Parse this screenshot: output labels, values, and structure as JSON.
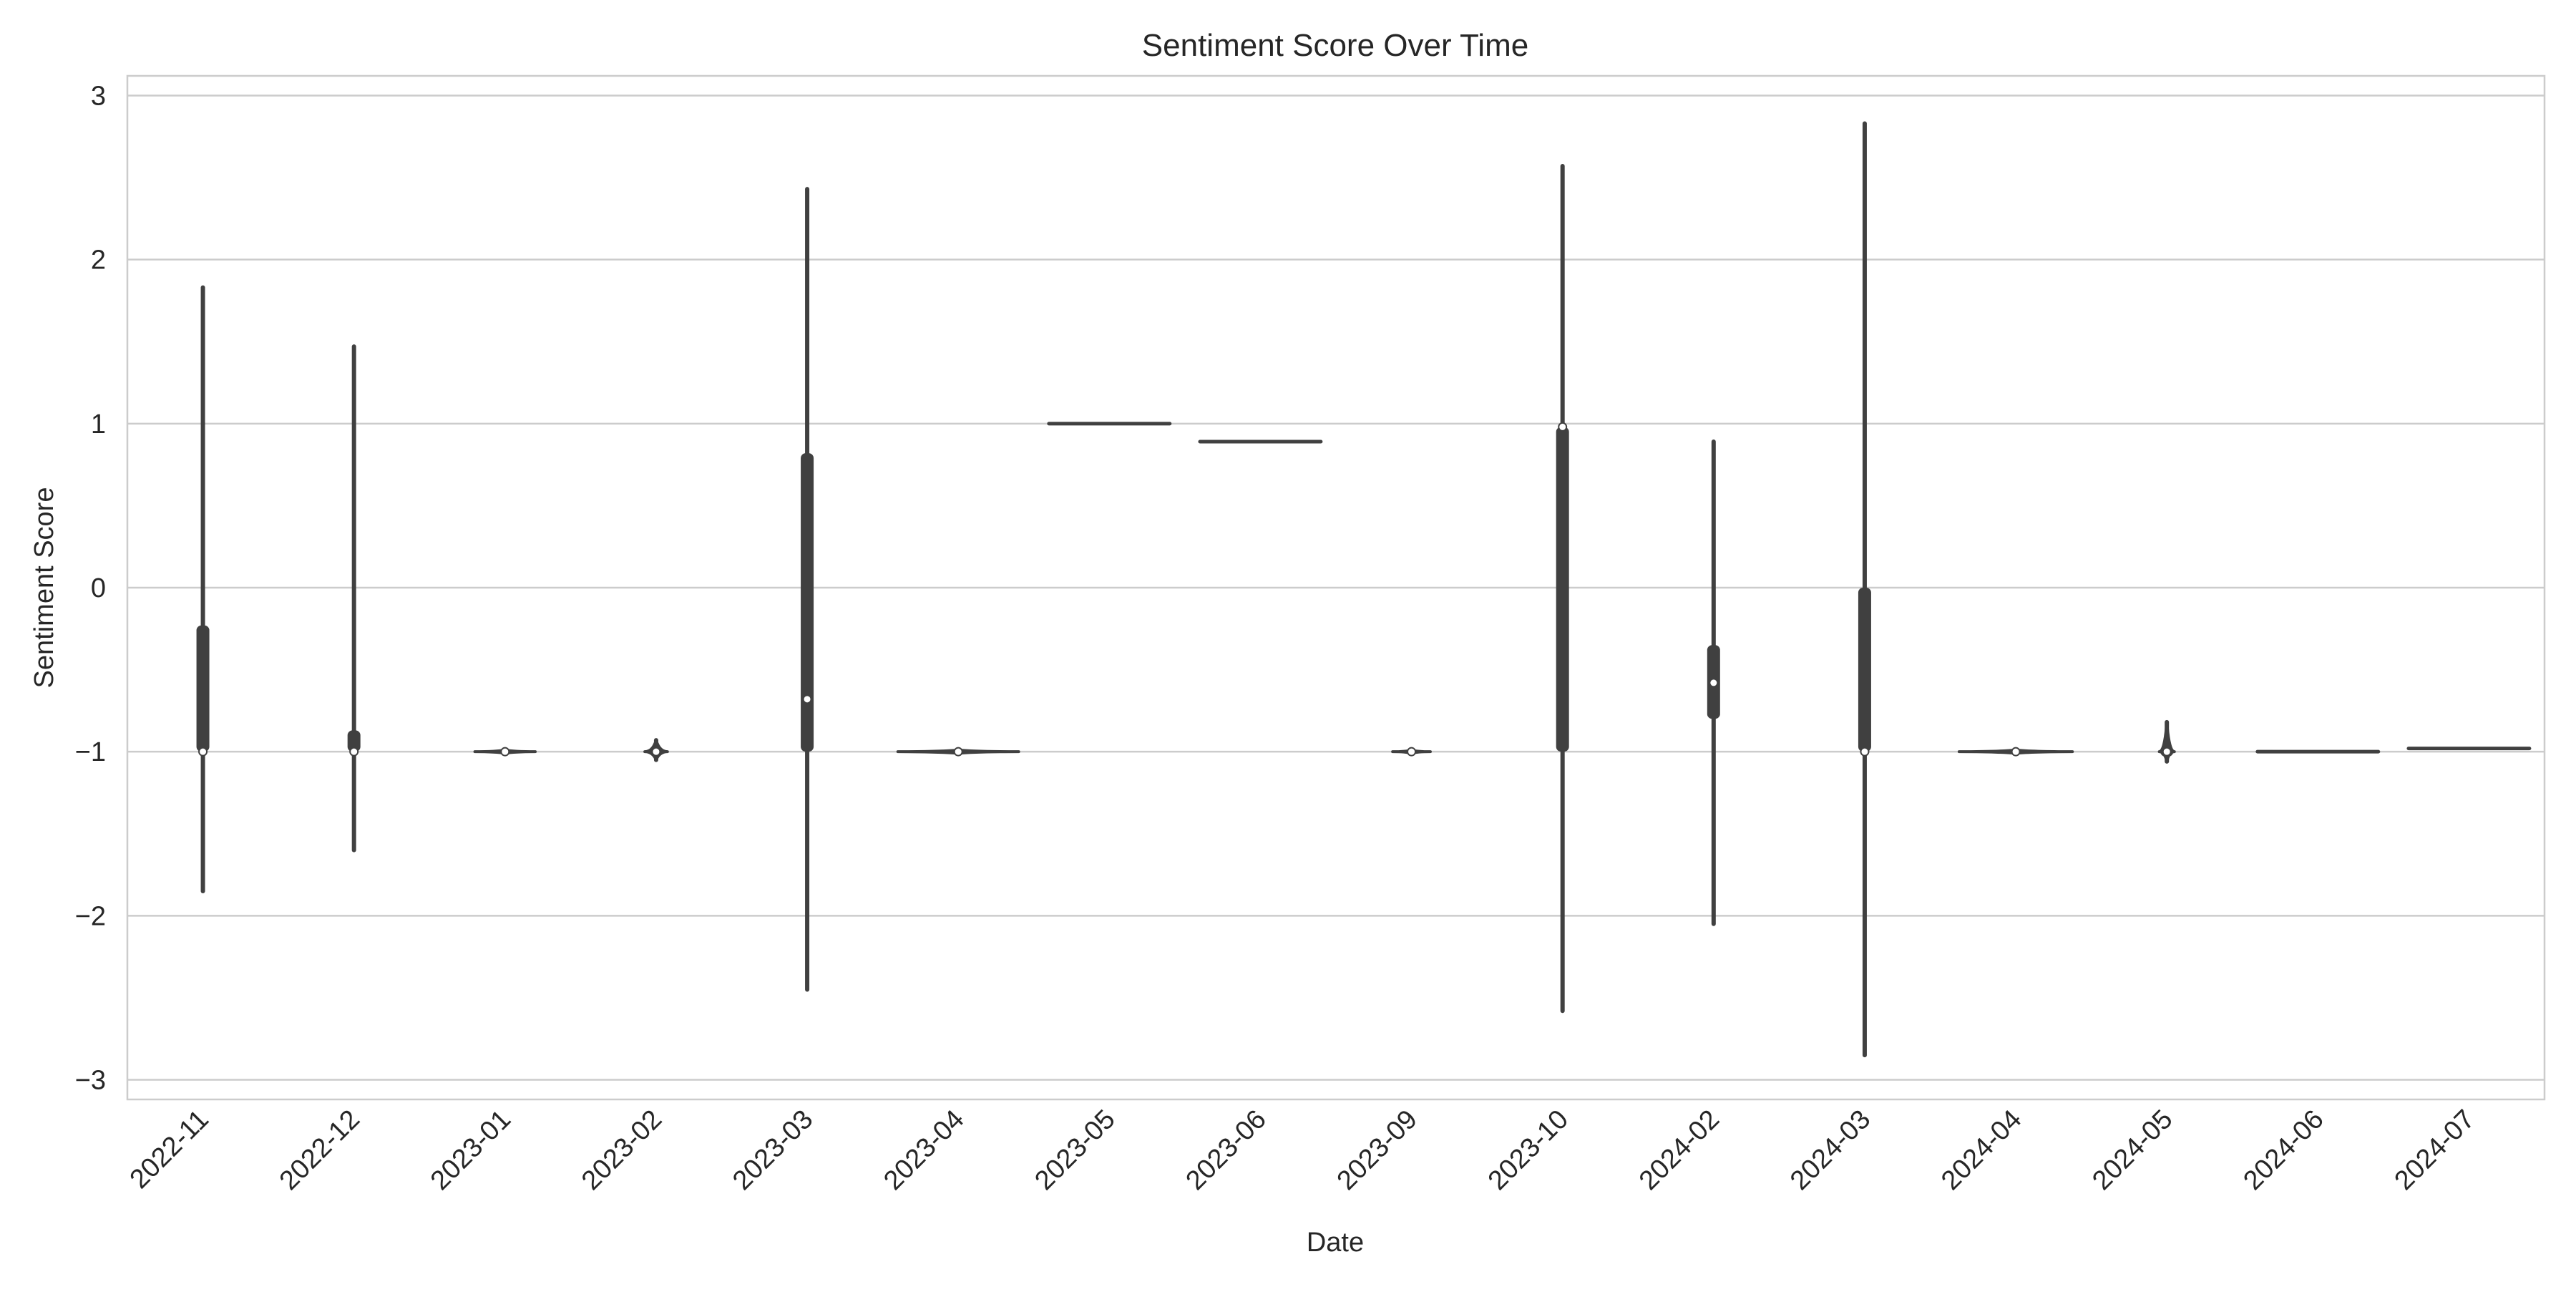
{
  "chart_data": {
    "type": "violin",
    "title": "Sentiment Score Over Time",
    "xlabel": "Date",
    "ylabel": "Sentiment Score",
    "categories": [
      "2022-11",
      "2022-12",
      "2023-01",
      "2023-02",
      "2023-03",
      "2023-04",
      "2023-05",
      "2023-06",
      "2023-09",
      "2023-10",
      "2024-02",
      "2024-03",
      "2024-04",
      "2024-05",
      "2024-06",
      "2024-07"
    ],
    "ylim": [
      -3.12,
      3.12
    ],
    "yticks": [
      -3,
      -2,
      -1,
      0,
      1,
      2,
      3
    ],
    "ytick_labels": [
      "−3",
      "−2",
      "−1",
      "0",
      "1",
      "2",
      "3"
    ],
    "grid": true,
    "violins": [
      {
        "category": "2022-11",
        "min": -1.85,
        "q1": -1.0,
        "median": -1.0,
        "q3": -0.23,
        "max": 1.83
      },
      {
        "category": "2022-12",
        "min": -1.6,
        "q1": -1.0,
        "median": -1.0,
        "q3": -0.87,
        "max": 1.47
      },
      {
        "category": "2023-01",
        "min": -1.01,
        "q1": -1.0,
        "median": -1.0,
        "q3": -1.0,
        "max": -0.99,
        "width": 0.4
      },
      {
        "category": "2023-02",
        "min": -1.05,
        "q1": -1.02,
        "median": -1.0,
        "q3": -0.97,
        "max": -0.93,
        "width": 0.15
      },
      {
        "category": "2023-03",
        "min": -2.45,
        "q1": -1.0,
        "median": -0.68,
        "q3": 0.82,
        "max": 2.43
      },
      {
        "category": "2023-04",
        "min": -1.01,
        "q1": -1.0,
        "median": -1.0,
        "q3": -1.0,
        "max": -0.99,
        "width": 0.8
      },
      {
        "category": "2023-05",
        "value": 1.0,
        "width": 0.8
      },
      {
        "category": "2023-06",
        "value": 0.89,
        "width": 0.8
      },
      {
        "category": "2023-09",
        "min": -1.01,
        "q1": -1.0,
        "median": -1.0,
        "q3": -1.0,
        "max": -0.99,
        "width": 0.25
      },
      {
        "category": "2023-10",
        "min": -2.58,
        "q1": -1.0,
        "median": 0.98,
        "q3": 0.98,
        "max": 2.57
      },
      {
        "category": "2024-02",
        "min": -2.05,
        "q1": -0.8,
        "median": -0.58,
        "q3": -0.35,
        "max": 0.89
      },
      {
        "category": "2024-03",
        "min": -2.85,
        "q1": -1.0,
        "median": -1.0,
        "q3": 0.0,
        "max": 2.83
      },
      {
        "category": "2024-04",
        "min": -1.01,
        "q1": -1.0,
        "median": -1.0,
        "q3": -1.0,
        "max": -0.99,
        "width": 0.75
      },
      {
        "category": "2024-05",
        "min": -1.06,
        "q1": -1.03,
        "median": -1.0,
        "q3": -0.97,
        "max": -0.82,
        "width": 0.1
      },
      {
        "category": "2024-06",
        "value": -1.0,
        "width": 0.8
      },
      {
        "category": "2024-07",
        "value": -0.98,
        "width": 0.8
      }
    ],
    "colors": {
      "violin": "#404040",
      "median_dot": "#ffffff",
      "grid": "#cccccc",
      "frame": "#cccccc",
      "text": "#262626"
    }
  }
}
